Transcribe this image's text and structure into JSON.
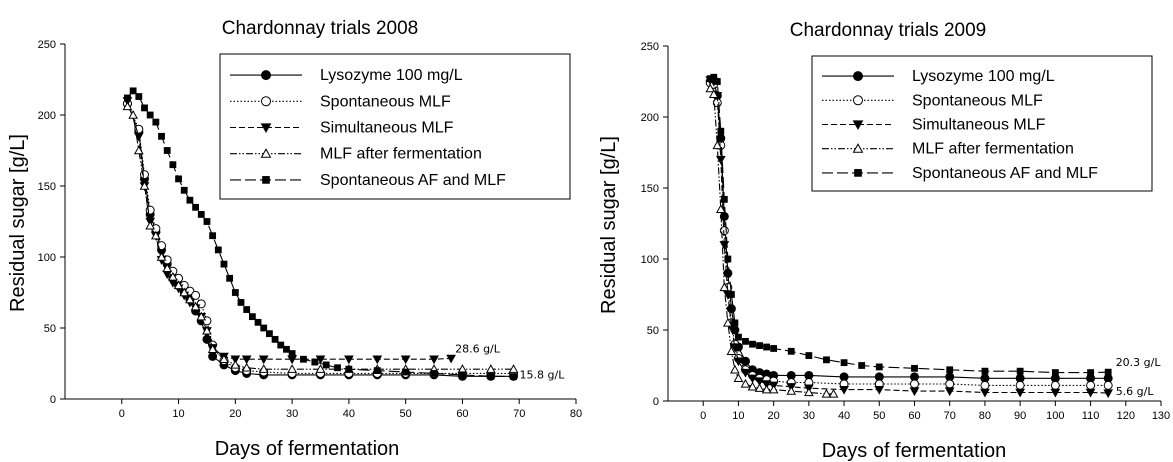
{
  "chart_data": [
    {
      "type": "line",
      "title": "Chardonnay trials 2008",
      "xlabel": "Days of fermentation",
      "ylabel": "Residual sugar [g/L]",
      "xlim": [
        -10,
        80
      ],
      "ylim": [
        0,
        250
      ],
      "xticks": [
        0,
        10,
        20,
        30,
        40,
        50,
        60,
        70,
        80
      ],
      "yticks": [
        0,
        50,
        100,
        150,
        200,
        250
      ],
      "grid": false,
      "legend_position": "top-right",
      "annotations": [
        {
          "text": "28.6 g/L",
          "x": 58,
          "y": 28.6
        },
        {
          "text": "15.8 g/L",
          "x": 69,
          "y": 15.8
        }
      ],
      "series": [
        {
          "name": "Lysozyme 100 mg/L",
          "marker": "filled-circle",
          "dash": "solid",
          "x": [
            1,
            3,
            4,
            5,
            6,
            7,
            8,
            9,
            10,
            11,
            12,
            13,
            14,
            15,
            16,
            18,
            20,
            22,
            25,
            30,
            35,
            40,
            45,
            50,
            55,
            60,
            65,
            69
          ],
          "y": [
            208,
            188,
            155,
            130,
            118,
            105,
            95,
            85,
            80,
            75,
            70,
            62,
            55,
            42,
            30,
            24,
            20,
            18,
            17,
            17,
            17,
            17,
            17,
            17,
            17,
            16,
            16,
            16
          ]
        },
        {
          "name": "Spontaneous MLF",
          "marker": "open-circle",
          "dash": "dotted",
          "x": [
            1,
            3,
            4,
            5,
            6,
            7,
            8,
            9,
            10,
            11,
            12,
            13,
            14,
            15,
            16,
            18,
            20,
            22,
            25,
            30,
            35,
            40,
            45,
            50,
            55,
            60,
            65,
            69
          ],
          "y": [
            208,
            190,
            158,
            133,
            120,
            108,
            98,
            90,
            85,
            80,
            76,
            73,
            67,
            55,
            38,
            27,
            22,
            20,
            19,
            18,
            18,
            18,
            18,
            18,
            18,
            18,
            18,
            18
          ]
        },
        {
          "name": "Simultaneous MLF",
          "marker": "filled-triangle-down",
          "dash": "dashed",
          "x": [
            1,
            3,
            4,
            5,
            6,
            7,
            8,
            9,
            10,
            11,
            12,
            13,
            14,
            15,
            16,
            18,
            20,
            22,
            25,
            30,
            35,
            40,
            45,
            50,
            55,
            58
          ],
          "y": [
            210,
            185,
            150,
            125,
            115,
            98,
            88,
            82,
            78,
            73,
            68,
            64,
            58,
            48,
            36,
            30,
            28,
            28,
            28,
            28,
            28,
            28,
            28,
            28,
            28,
            28.6
          ]
        },
        {
          "name": "MLF after fermentation",
          "marker": "open-triangle-up",
          "dash": "dash-dot-dot",
          "x": [
            1,
            2,
            3,
            4,
            5,
            6,
            7,
            8,
            9,
            10,
            11,
            12,
            13,
            14,
            15,
            16,
            18,
            20,
            22,
            25,
            30,
            35,
            40,
            45,
            50,
            55,
            60,
            65,
            69
          ],
          "y": [
            206,
            200,
            175,
            150,
            122,
            115,
            100,
            92,
            86,
            80,
            75,
            70,
            65,
            58,
            48,
            35,
            28,
            24,
            22,
            21,
            21,
            21,
            21,
            21,
            21,
            21,
            21,
            21,
            21
          ]
        },
        {
          "name": "Spontaneous AF and MLF",
          "marker": "filled-square",
          "dash": "long-dash",
          "x": [
            1,
            2,
            3,
            4,
            5,
            6,
            7,
            8,
            9,
            10,
            11,
            12,
            13,
            14,
            15,
            16,
            17,
            18,
            19,
            20,
            21,
            22,
            23,
            24,
            25,
            26,
            27,
            28,
            29,
            30,
            32,
            34,
            36,
            38,
            40,
            45,
            50,
            55,
            60,
            65,
            69
          ],
          "y": [
            212,
            217,
            213,
            205,
            200,
            195,
            185,
            175,
            165,
            155,
            147,
            140,
            135,
            130,
            125,
            115,
            105,
            95,
            85,
            75,
            68,
            63,
            58,
            54,
            50,
            46,
            42,
            38,
            35,
            32,
            28,
            26,
            24,
            22,
            21,
            20,
            19,
            18,
            17,
            16,
            15.8
          ]
        }
      ]
    },
    {
      "type": "line",
      "title": "Chardonnay trials 2009",
      "xlabel": "Days of fermentation",
      "ylabel": "Residual sugar [g/L]",
      "xlim": [
        -10,
        130
      ],
      "ylim": [
        0,
        250
      ],
      "xticks": [
        0,
        10,
        20,
        30,
        40,
        50,
        60,
        70,
        80,
        90,
        100,
        110,
        120,
        130
      ],
      "yticks": [
        0,
        50,
        100,
        150,
        200,
        250
      ],
      "grid": false,
      "legend_position": "top-right",
      "annotations": [
        {
          "text": "20.3 g/L",
          "x": 116,
          "y": 20.3
        },
        {
          "text": "5.6 g/L",
          "x": 116,
          "y": 5.6
        }
      ],
      "series": [
        {
          "name": "Lysozyme 100 mg/L",
          "marker": "filled-circle",
          "dash": "solid",
          "x": [
            2,
            3,
            4,
            5,
            6,
            7,
            8,
            9,
            10,
            12,
            14,
            16,
            18,
            20,
            25,
            30,
            40,
            50,
            60,
            70,
            80,
            90,
            100,
            110,
            115
          ],
          "y": [
            225,
            225,
            215,
            185,
            130,
            90,
            65,
            50,
            38,
            28,
            22,
            20,
            19,
            18,
            18,
            18,
            17,
            17,
            17,
            17,
            16,
            16,
            16,
            16,
            16
          ]
        },
        {
          "name": "Spontaneous MLF",
          "marker": "open-circle",
          "dash": "dotted",
          "x": [
            2,
            3,
            4,
            5,
            6,
            7,
            8,
            9,
            10,
            12,
            14,
            16,
            18,
            20,
            25,
            30,
            40,
            50,
            60,
            70,
            80,
            90,
            100,
            110,
            115
          ],
          "y": [
            224,
            223,
            210,
            180,
            120,
            80,
            55,
            40,
            30,
            22,
            18,
            16,
            15,
            14,
            13,
            13,
            12,
            12,
            12,
            12,
            11,
            11,
            11,
            11,
            11
          ]
        },
        {
          "name": "Simultaneous MLF",
          "marker": "filled-triangle-down",
          "dash": "dashed",
          "x": [
            2,
            3,
            4,
            5,
            6,
            7,
            8,
            9,
            10,
            12,
            14,
            16,
            18,
            20,
            25,
            30,
            40,
            50,
            60,
            70,
            80,
            90,
            100,
            110,
            115
          ],
          "y": [
            226,
            225,
            215,
            170,
            110,
            75,
            52,
            38,
            28,
            20,
            16,
            14,
            12,
            11,
            10,
            9,
            8,
            8,
            7,
            7,
            6,
            6,
            6,
            6,
            5.6
          ]
        },
        {
          "name": "MLF after fermentation",
          "marker": "open-triangle-up",
          "dash": "dash-dot-dot",
          "x": [
            2,
            3,
            4,
            5,
            6,
            7,
            8,
            9,
            10,
            12,
            14,
            16,
            18,
            20,
            25,
            30,
            35,
            37
          ],
          "y": [
            220,
            216,
            180,
            135,
            80,
            55,
            35,
            22,
            16,
            12,
            10,
            9,
            8,
            8,
            7,
            6,
            5,
            5
          ]
        },
        {
          "name": "Spontaneous AF and MLF",
          "marker": "filled-square",
          "dash": "long-dash",
          "x": [
            2,
            3,
            4,
            5,
            6,
            7,
            8,
            9,
            10,
            12,
            14,
            16,
            18,
            20,
            25,
            30,
            35,
            40,
            45,
            50,
            60,
            70,
            80,
            90,
            100,
            110,
            115
          ],
          "y": [
            227,
            228,
            225,
            190,
            142,
            100,
            75,
            55,
            45,
            42,
            40,
            39,
            38,
            37,
            35,
            32,
            29,
            27,
            25,
            24,
            23,
            22,
            21,
            21,
            20,
            20,
            20.3
          ]
        }
      ]
    }
  ]
}
